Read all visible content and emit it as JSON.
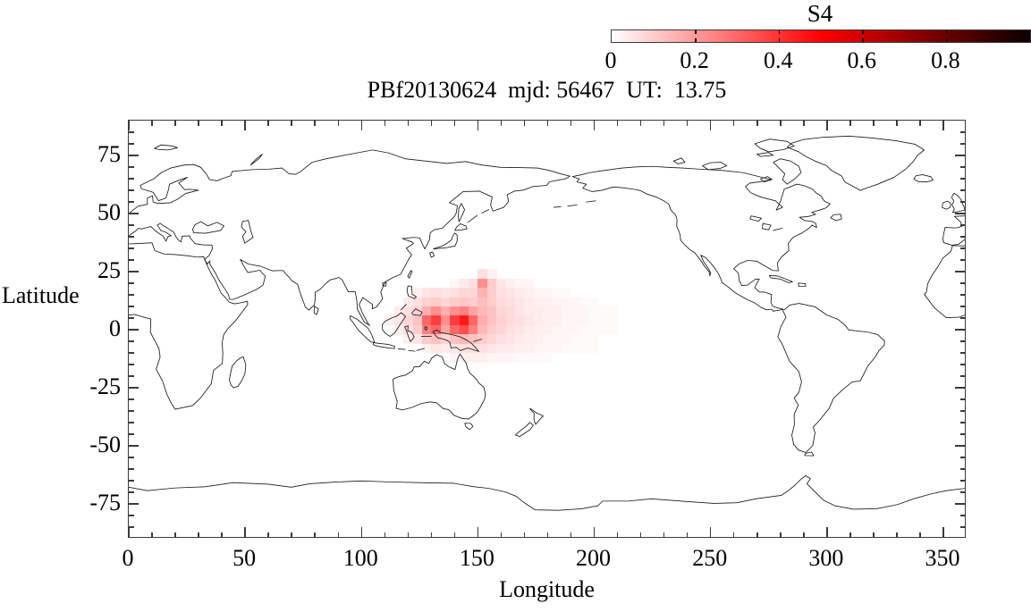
{
  "figure": {
    "title": "PBf20130624  mjd: 56467  UT:  13.75",
    "background": "#ffffff"
  },
  "colorbar": {
    "label": "S4",
    "min": 0,
    "max": 1,
    "tick_labels": [
      "0",
      "0.2",
      "0.4",
      "0.6",
      "0.8"
    ],
    "tick_values": [
      0,
      0.2,
      0.4,
      0.6,
      0.8
    ],
    "inner_tick_values": [
      0.2,
      0.4,
      0.6,
      0.8
    ],
    "gradient_stops": [
      "#ffffff",
      "#ff8080",
      "#ff0000",
      "#800000",
      "#0a0000"
    ]
  },
  "axes": {
    "x": {
      "label": "Longitude",
      "min": 0,
      "max": 360,
      "major_ticks": [
        0,
        50,
        100,
        150,
        200,
        250,
        300,
        350
      ],
      "major_tick_labels": [
        "0",
        "50",
        "100",
        "150",
        "200",
        "250",
        "300",
        "350"
      ],
      "minor_step": 10
    },
    "y": {
      "label": "Latitude",
      "min": -90,
      "max": 90,
      "major_ticks": [
        75,
        50,
        25,
        0,
        -25,
        -50,
        -75
      ],
      "major_tick_labels": [
        "75",
        "50",
        "25",
        "0",
        "-25",
        "-50",
        "-75"
      ],
      "minor_step": 5
    }
  },
  "chart_data": {
    "type": "heatmap",
    "title": "PBf20130624  mjd: 56467  UT:  13.75",
    "value_name": "S4",
    "xlabel": "Longitude",
    "ylabel": "Latitude",
    "xlim": [
      0,
      360
    ],
    "ylim": [
      -90,
      90
    ],
    "colorbar": {
      "label": "S4",
      "range": [
        0,
        1
      ]
    },
    "legend_position": "top-right",
    "grid": {
      "lon_start": 106,
      "lat_top": 26,
      "dlon": 4,
      "dlat": 4
    },
    "values": [
      [
        0,
        0,
        0,
        0,
        0,
        0,
        0,
        0,
        0,
        0,
        0,
        0.06,
        0.03,
        0,
        0,
        0,
        0,
        0,
        0,
        0,
        0,
        0,
        0,
        0,
        0,
        0
      ],
      [
        0,
        0,
        0,
        0,
        0,
        0,
        0,
        0,
        0.02,
        0.04,
        0.06,
        0.22,
        0.1,
        0.05,
        0.03,
        0.02,
        0.02,
        0,
        0,
        0,
        0,
        0,
        0,
        0,
        0,
        0
      ],
      [
        0,
        0,
        0,
        0,
        0.03,
        0.05,
        0.06,
        0.05,
        0.06,
        0.08,
        0.08,
        0.15,
        0.1,
        0.06,
        0.05,
        0.04,
        0.03,
        0.02,
        0.02,
        0.01,
        0.01,
        0,
        0,
        0,
        0,
        0
      ],
      [
        0,
        0,
        0,
        0.04,
        0.06,
        0.09,
        0.1,
        0.08,
        0.1,
        0.11,
        0.1,
        0.13,
        0.1,
        0.07,
        0.06,
        0.05,
        0.04,
        0.03,
        0.03,
        0.02,
        0.02,
        0.02,
        0.01,
        0.01,
        0,
        0
      ],
      [
        0,
        0,
        0.04,
        0.06,
        0.09,
        0.16,
        0.22,
        0.16,
        0.22,
        0.25,
        0.18,
        0.14,
        0.12,
        0.08,
        0.07,
        0.05,
        0.04,
        0.04,
        0.03,
        0.03,
        0.02,
        0.02,
        0.02,
        0.01,
        0.01,
        0.01
      ],
      [
        0,
        0.03,
        0.05,
        0.08,
        0.12,
        0.3,
        0.38,
        0.22,
        0.38,
        0.45,
        0.3,
        0.16,
        0.12,
        0.09,
        0.07,
        0.06,
        0.05,
        0.04,
        0.03,
        0.03,
        0.02,
        0.02,
        0.02,
        0.01,
        0.01,
        0.01
      ],
      [
        0,
        0,
        0.04,
        0.06,
        0.1,
        0.25,
        0.3,
        0.18,
        0.3,
        0.35,
        0.25,
        0.14,
        0.1,
        0.08,
        0.06,
        0.05,
        0.04,
        0.03,
        0.03,
        0.02,
        0.02,
        0.02,
        0.01,
        0.01,
        0.01,
        0.01
      ],
      [
        0,
        0,
        0,
        0.03,
        0.05,
        0.1,
        0.12,
        0.08,
        0.12,
        0.14,
        0.12,
        0.1,
        0.08,
        0.06,
        0.05,
        0.04,
        0.03,
        0.03,
        0.02,
        0.02,
        0.02,
        0.01,
        0.01,
        0.01,
        0,
        0
      ],
      [
        0,
        0,
        0,
        0,
        0,
        0.03,
        0.05,
        0.04,
        0.05,
        0.06,
        0.06,
        0.06,
        0.05,
        0.04,
        0.04,
        0.03,
        0.03,
        0.02,
        0.02,
        0.02,
        0.01,
        0.01,
        0.01,
        0.01,
        0,
        0
      ],
      [
        0,
        0,
        0,
        0,
        0,
        0,
        0,
        0,
        0.02,
        0.03,
        0.03,
        0.03,
        0.02,
        0.02,
        0.02,
        0.01,
        0.01,
        0.01,
        0.01,
        0,
        0,
        0,
        0,
        0,
        0,
        0
      ]
    ]
  }
}
